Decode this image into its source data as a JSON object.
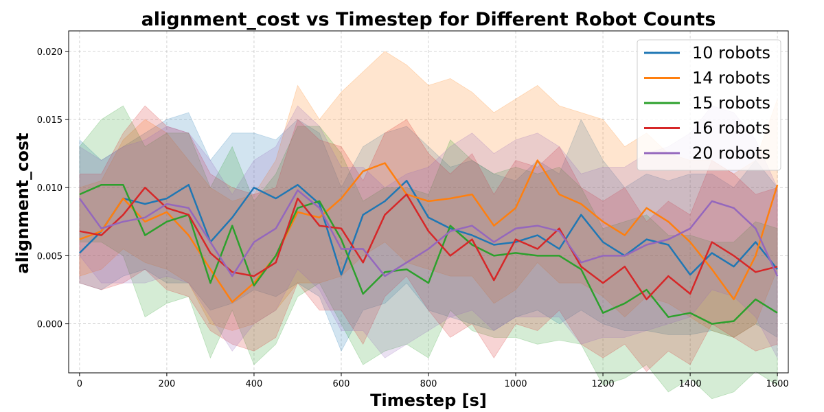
{
  "chart_data": {
    "type": "line",
    "title": "alignment_cost vs Timestep for Different Robot Counts",
    "xlabel": "Timestep [s]",
    "ylabel": "alignment_cost",
    "xlim": [
      -25,
      1625
    ],
    "ylim": [
      -0.0036,
      0.0215
    ],
    "xticks": [
      0,
      200,
      400,
      600,
      800,
      1000,
      1200,
      1400,
      1600
    ],
    "xtick_labels": [
      "0",
      "200",
      "400",
      "600",
      "800",
      "1000",
      "1200",
      "1400",
      "1600"
    ],
    "yticks": [
      0.0,
      0.005,
      0.01,
      0.015,
      0.02
    ],
    "ytick_labels": [
      "0.000",
      "0.005",
      "0.010",
      "0.015",
      "0.020"
    ],
    "grid": true,
    "legend_position": "top-right",
    "x": [
      0,
      50,
      100,
      150,
      200,
      250,
      300,
      350,
      400,
      450,
      500,
      550,
      600,
      650,
      700,
      750,
      800,
      850,
      900,
      950,
      1000,
      1050,
      1100,
      1150,
      1200,
      1250,
      1300,
      1350,
      1400,
      1450,
      1500,
      1550,
      1600
    ],
    "series": [
      {
        "name": "10 robots",
        "color": "#1f77b4",
        "values": [
          0.0052,
          0.0068,
          0.0092,
          0.0088,
          0.0092,
          0.0102,
          0.006,
          0.0078,
          0.01,
          0.0092,
          0.0102,
          0.0088,
          0.0036,
          0.008,
          0.009,
          0.0105,
          0.0078,
          0.007,
          0.0065,
          0.0058,
          0.006,
          0.0065,
          0.0055,
          0.008,
          0.006,
          0.005,
          0.0062,
          0.0058,
          0.0036,
          0.0052,
          0.0042,
          0.006,
          0.004
        ],
        "upper": [
          0.0135,
          0.012,
          0.013,
          0.014,
          0.015,
          0.0155,
          0.012,
          0.014,
          0.014,
          0.0135,
          0.015,
          0.014,
          0.01,
          0.013,
          0.014,
          0.0145,
          0.013,
          0.0115,
          0.012,
          0.011,
          0.0105,
          0.012,
          0.011,
          0.015,
          0.012,
          0.01,
          0.011,
          0.0105,
          0.011,
          0.011,
          0.01,
          0.012,
          0.01
        ],
        "lower": [
          0.003,
          0.0025,
          0.0035,
          0.004,
          0.003,
          0.003,
          0.001,
          0.0015,
          0.0025,
          0.002,
          0.003,
          0.002,
          -0.002,
          0.001,
          0.0015,
          0.003,
          0.001,
          0.0005,
          0.0,
          -0.0005,
          0.0005,
          0.001,
          0.0,
          0.001,
          0.0,
          -0.0005,
          -0.0005,
          -0.0008,
          -0.0008,
          -0.0005,
          -0.001,
          0.0,
          -0.001
        ]
      },
      {
        "name": "14 robots",
        "color": "#ff7f0e",
        "values": [
          0.0062,
          0.0068,
          0.0092,
          0.0075,
          0.0082,
          0.0065,
          0.004,
          0.0016,
          0.003,
          0.005,
          0.0082,
          0.0078,
          0.0092,
          0.0112,
          0.0118,
          0.0095,
          0.009,
          0.0092,
          0.0095,
          0.0072,
          0.0085,
          0.012,
          0.0095,
          0.0088,
          0.0075,
          0.0065,
          0.0085,
          0.0075,
          0.006,
          0.004,
          0.0018,
          0.005,
          0.0102
        ],
        "upper": [
          0.01,
          0.0105,
          0.0135,
          0.015,
          0.014,
          0.012,
          0.01,
          0.009,
          0.0095,
          0.012,
          0.0175,
          0.015,
          0.017,
          0.0185,
          0.02,
          0.019,
          0.0175,
          0.018,
          0.017,
          0.0155,
          0.0165,
          0.0175,
          0.016,
          0.0155,
          0.015,
          0.013,
          0.014,
          0.0125,
          0.012,
          0.012,
          0.011,
          0.012,
          0.0165
        ],
        "lower": [
          0.0035,
          0.004,
          0.0055,
          0.0045,
          0.004,
          0.003,
          0.0,
          -0.0005,
          0.0,
          0.001,
          0.003,
          0.003,
          0.0035,
          0.005,
          0.006,
          0.0045,
          0.004,
          0.0035,
          0.0035,
          0.0015,
          0.0025,
          0.0045,
          0.003,
          0.003,
          0.002,
          0.0005,
          0.002,
          0.0015,
          0.0005,
          -0.0005,
          -0.001,
          0.0,
          0.004
        ]
      },
      {
        "name": "15 robots",
        "color": "#2ca02c",
        "values": [
          0.0095,
          0.0102,
          0.0102,
          0.0065,
          0.0075,
          0.008,
          0.003,
          0.0072,
          0.0028,
          0.005,
          0.0085,
          0.009,
          0.0062,
          0.0022,
          0.0038,
          0.004,
          0.003,
          0.0072,
          0.0058,
          0.005,
          0.0052,
          0.005,
          0.005,
          0.004,
          0.0008,
          0.0015,
          0.0025,
          0.0005,
          0.0008,
          0.0,
          0.0002,
          0.0018,
          0.0008
        ],
        "upper": [
          0.013,
          0.015,
          0.016,
          0.013,
          0.014,
          0.014,
          0.01,
          0.013,
          0.009,
          0.011,
          0.0145,
          0.0145,
          0.0125,
          0.009,
          0.01,
          0.01,
          0.0095,
          0.0135,
          0.012,
          0.011,
          0.0115,
          0.011,
          0.0115,
          0.01,
          0.007,
          0.0075,
          0.008,
          0.0065,
          0.0065,
          0.006,
          0.006,
          0.0075,
          0.007
        ],
        "lower": [
          0.006,
          0.006,
          0.005,
          0.0005,
          0.0015,
          0.002,
          -0.0025,
          0.001,
          -0.003,
          -0.0015,
          0.002,
          0.003,
          0.0,
          -0.003,
          -0.002,
          -0.0015,
          -0.0025,
          0.001,
          -0.0005,
          -0.001,
          -0.001,
          -0.0015,
          -0.0012,
          -0.0015,
          -0.0045,
          -0.004,
          -0.003,
          -0.005,
          -0.004,
          -0.0055,
          -0.005,
          -0.0035,
          -0.0045
        ]
      },
      {
        "name": "16 robots",
        "color": "#d62728",
        "values": [
          0.0068,
          0.0065,
          0.008,
          0.01,
          0.0085,
          0.008,
          0.0052,
          0.0038,
          0.0035,
          0.0045,
          0.0092,
          0.0072,
          0.007,
          0.0045,
          0.008,
          0.0095,
          0.0068,
          0.005,
          0.0062,
          0.0032,
          0.0062,
          0.0055,
          0.007,
          0.0042,
          0.003,
          0.0042,
          0.0018,
          0.0035,
          0.0022,
          0.006,
          0.005,
          0.0038,
          0.0042
        ],
        "upper": [
          0.011,
          0.011,
          0.014,
          0.016,
          0.0145,
          0.014,
          0.011,
          0.01,
          0.0095,
          0.01,
          0.015,
          0.0135,
          0.013,
          0.0105,
          0.014,
          0.015,
          0.0125,
          0.011,
          0.0125,
          0.0095,
          0.012,
          0.0115,
          0.013,
          0.01,
          0.009,
          0.01,
          0.0075,
          0.009,
          0.008,
          0.012,
          0.011,
          0.0095,
          0.01
        ],
        "lower": [
          0.003,
          0.0025,
          0.003,
          0.004,
          0.0025,
          0.002,
          -0.0005,
          -0.0015,
          -0.002,
          -0.001,
          0.003,
          0.001,
          0.001,
          -0.0015,
          0.002,
          0.0035,
          0.001,
          -0.001,
          0.0,
          -0.0025,
          0.0,
          -0.0005,
          0.001,
          -0.0015,
          -0.0025,
          -0.0015,
          -0.0035,
          -0.002,
          -0.003,
          0.0,
          -0.001,
          -0.002,
          -0.0015
        ]
      },
      {
        "name": "20 robots",
        "color": "#9467bd",
        "values": [
          0.0092,
          0.007,
          0.0075,
          0.0078,
          0.0088,
          0.0085,
          0.006,
          0.0035,
          0.006,
          0.007,
          0.0098,
          0.0085,
          0.0055,
          0.0055,
          0.0035,
          0.0045,
          0.0055,
          0.0068,
          0.0072,
          0.006,
          0.007,
          0.0072,
          0.0068,
          0.0045,
          0.005,
          0.005,
          0.0058,
          0.0062,
          0.007,
          0.009,
          0.0085,
          0.007,
          0.0035
        ],
        "upper": [
          0.013,
          0.012,
          0.013,
          0.0135,
          0.0145,
          0.014,
          0.012,
          0.0095,
          0.012,
          0.013,
          0.016,
          0.0145,
          0.0115,
          0.0115,
          0.01,
          0.011,
          0.0115,
          0.013,
          0.014,
          0.0125,
          0.0135,
          0.014,
          0.013,
          0.011,
          0.0115,
          0.0115,
          0.0125,
          0.013,
          0.014,
          0.016,
          0.0155,
          0.0135,
          0.01
        ],
        "lower": [
          0.005,
          0.003,
          0.003,
          0.003,
          0.0035,
          0.003,
          0.0005,
          -0.002,
          0.0,
          0.001,
          0.004,
          0.0025,
          -0.0005,
          -0.0005,
          -0.0025,
          -0.0015,
          -0.0005,
          0.0005,
          0.001,
          -0.0005,
          0.0005,
          0.0005,
          0.0005,
          -0.0015,
          -0.001,
          -0.001,
          -0.0005,
          0.0,
          0.0005,
          0.0025,
          0.002,
          0.0005,
          -0.0025
        ]
      }
    ]
  }
}
